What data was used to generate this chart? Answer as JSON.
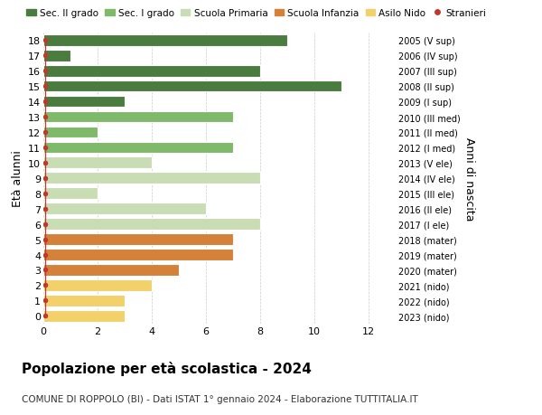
{
  "ages": [
    18,
    17,
    16,
    15,
    14,
    13,
    12,
    11,
    10,
    9,
    8,
    7,
    6,
    5,
    4,
    3,
    2,
    1,
    0
  ],
  "right_labels": [
    "2005 (V sup)",
    "2006 (IV sup)",
    "2007 (III sup)",
    "2008 (II sup)",
    "2009 (I sup)",
    "2010 (III med)",
    "2011 (II med)",
    "2012 (I med)",
    "2013 (V ele)",
    "2014 (IV ele)",
    "2015 (III ele)",
    "2016 (II ele)",
    "2017 (I ele)",
    "2018 (mater)",
    "2019 (mater)",
    "2020 (mater)",
    "2021 (nido)",
    "2022 (nido)",
    "2023 (nido)"
  ],
  "bar_values": [
    9,
    1,
    8,
    11,
    3,
    7,
    2,
    7,
    4,
    8,
    2,
    6,
    8,
    7,
    7,
    5,
    4,
    3,
    3
  ],
  "bar_colors": [
    "#4a7c3f",
    "#4a7c3f",
    "#4a7c3f",
    "#4a7c3f",
    "#4a7c3f",
    "#7fb96a",
    "#7fb96a",
    "#7fb96a",
    "#c8ddb4",
    "#c8ddb4",
    "#c8ddb4",
    "#c8ddb4",
    "#c8ddb4",
    "#d4813a",
    "#d4813a",
    "#d4813a",
    "#f2d16b",
    "#f2d16b",
    "#f2d16b"
  ],
  "stranieri_x": [
    0,
    0,
    0,
    0,
    0,
    0,
    1,
    1,
    1,
    0,
    0,
    1,
    0,
    0,
    1,
    1,
    0,
    0,
    0
  ],
  "legend_labels": [
    "Sec. II grado",
    "Sec. I grado",
    "Scuola Primaria",
    "Scuola Infanzia",
    "Asilo Nido",
    "Stranieri"
  ],
  "legend_colors": [
    "#4a7c3f",
    "#7fb96a",
    "#c8ddb4",
    "#d4813a",
    "#f2d16b",
    "#c0392b"
  ],
  "ylabel": "Età alunni",
  "right_ylabel": "Anni di nascita",
  "title": "Popolazione per età scolastica - 2024",
  "subtitle": "COMUNE DI ROPPOLO (BI) - Dati ISTAT 1° gennaio 2024 - Elaborazione TUTTITALIA.IT",
  "xlim": [
    0,
    13
  ],
  "ylim": [
    -0.5,
    18.5
  ],
  "background_color": "#ffffff",
  "stranieri_line_color": "#c0392b",
  "stranieri_dot_color": "#c0392b",
  "grid_color": "#cccccc"
}
